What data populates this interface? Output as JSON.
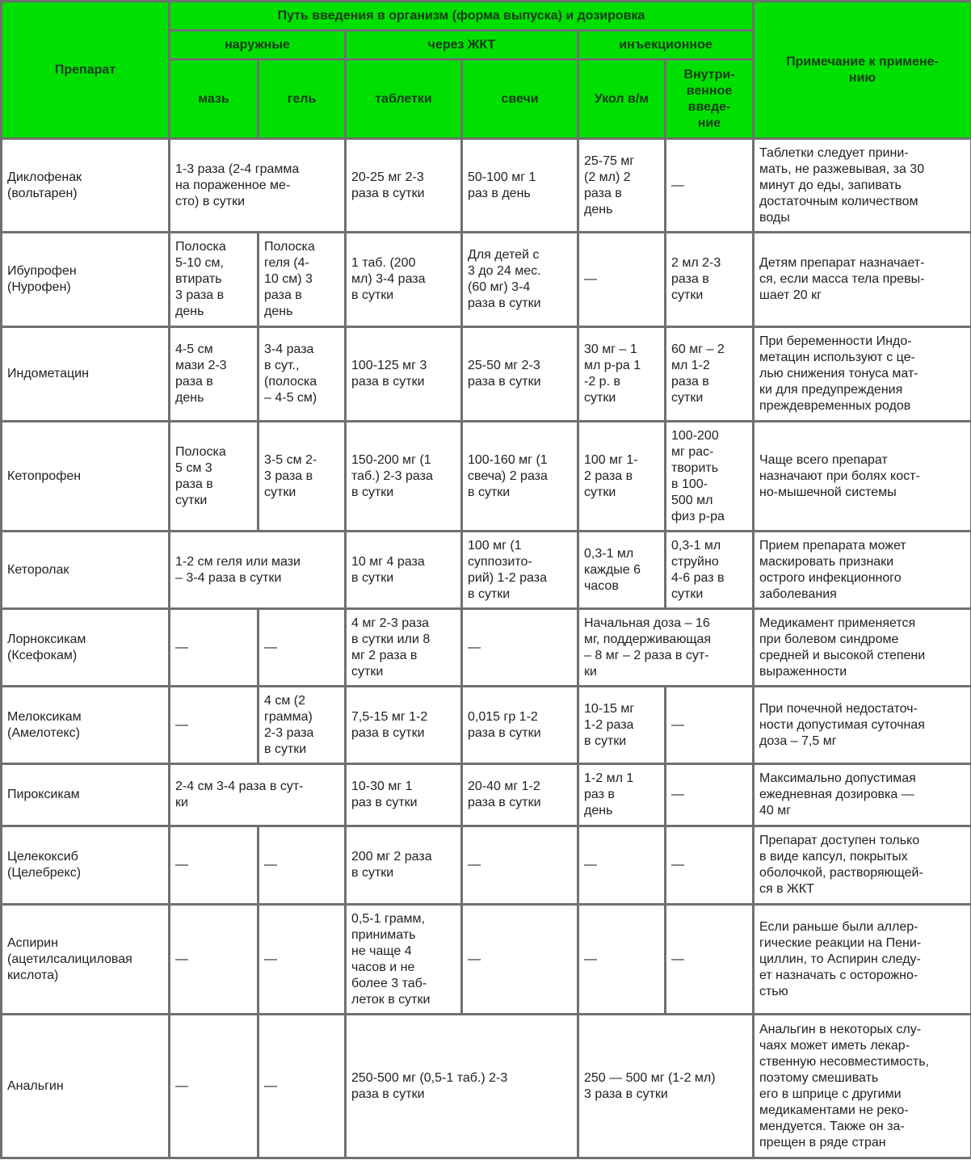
{
  "header": {
    "drug": "Препарат",
    "route": "Путь введения в организм (форма выпуска) и дозировка",
    "note": "Примечание к примене-\nнию",
    "groups": [
      "наружные",
      "через ЖКТ",
      "инъекционное"
    ],
    "forms": [
      "мазь",
      "гель",
      "таблетки",
      "свечи",
      "Укол в/м",
      "Внутри-\nвенное\nвведе-\nние"
    ]
  },
  "colors": {
    "header_bg": "#00e000",
    "border": "#707070"
  },
  "rows": [
    {
      "name": "Диклофенак\n(вольтарен)",
      "cells": [
        {
          "text": "1-3 раза (2-4 грамма\nна пораженное ме-\nсто) в сутки",
          "span": 2
        },
        {
          "text": "20-25 мг 2-3\nраза в сутки"
        },
        {
          "text": "50-100 мг 1\nраз в день"
        },
        {
          "text": "25-75 мг\n(2 мл) 2\nраза в\nдень"
        },
        {
          "text": "—"
        }
      ],
      "note": "Таблетки следует прини-\nмать, не разжевывая, за 30\nминут до еды, запивать\nдостаточным количеством\nводы"
    },
    {
      "name": "Ибупрофен\n(Нурофен)",
      "cells": [
        {
          "text": "Полоска\n5-10 см,\nвтирать\n3 раза в\nдень"
        },
        {
          "text": "Полоска\nгеля (4-\n10 см) 3\nраза в\nдень"
        },
        {
          "text": "1 таб. (200\nмл) 3-4 раза\nв сутки"
        },
        {
          "text": "Для детей с\n3 до 24 мес.\n(60 мг) 3-4\nраза в сутки"
        },
        {
          "text": "—"
        },
        {
          "text": "2 мл 2-3\nраза в\nсутки"
        }
      ],
      "note": "Детям препарат назначает-\nся, если масса тела превы-\nшает 20 кг"
    },
    {
      "name": "Индометацин",
      "cells": [
        {
          "text": "4-5 см\nмази 2-3\nраза в\nдень"
        },
        {
          "text": "3-4 раза\nв сут.,\n(полоска\n– 4-5 см)"
        },
        {
          "text": "100-125 мг 3\nраза в сутки"
        },
        {
          "text": "25-50 мг 2-3\nраза в сутки"
        },
        {
          "text": "30 мг – 1\nмл р-ра 1\n-2 р. в\nсутки"
        },
        {
          "text": "60 мг – 2\nмл 1-2\nраза в\nсутки"
        }
      ],
      "note": "При беременности Индо-\nметацин используют с це-\nлью снижения тонуса мат-\nки для предупреждения\nпреждевременных родов"
    },
    {
      "name": "Кетопрофен",
      "cells": [
        {
          "text": "Полоска\n5 см 3\nраза в\nсутки"
        },
        {
          "text": "3-5 см 2-\n3 раза в\nсутки"
        },
        {
          "text": "150-200 мг (1\nтаб.) 2-3 раза\nв сутки"
        },
        {
          "text": "100-160 мг (1\nсвеча) 2 раза\nв сутки"
        },
        {
          "text": "100 мг 1-\n2 раза в\nсутки"
        },
        {
          "text": "100-200\nмг рас-\nтворить\nв 100-\n500 мл\nфиз р-ра"
        }
      ],
      "note": "Чаще всего препарат\nназначают при болях кост-\nно-мышечной системы"
    },
    {
      "name": "Кеторолак",
      "cells": [
        {
          "text": "1-2 см геля или мази\n– 3-4 раза в сутки",
          "span": 2
        },
        {
          "text": "10 мг 4 раза\nв сутки"
        },
        {
          "text": "100 мг (1\nсуппозито-\nрий) 1-2 раза\nв сутки"
        },
        {
          "text": "0,3-1 мл\nкаждые 6\nчасов"
        },
        {
          "text": "0,3-1 мл\nструйно\n4-6 раз в\nсутки"
        }
      ],
      "note": "Прием препарата может\nмаскировать признаки\nострого инфекционного\nзаболевания"
    },
    {
      "name": "Лорноксикам\n(Ксефокам)",
      "cells": [
        {
          "text": "—"
        },
        {
          "text": "—"
        },
        {
          "text": "4 мг 2-3 раза\nв сутки или 8\nмг 2 раза в\nсутки"
        },
        {
          "text": "—"
        },
        {
          "text": "Начальная доза – 16\nмг, поддерживающая\n– 8 мг – 2 раза в сут-\nки",
          "span": 2
        }
      ],
      "note": "Медикамент применяется\nпри болевом синдроме\nсредней и высокой степени\nвыраженности"
    },
    {
      "name": "Мелоксикам\n(Амелотекс)",
      "cells": [
        {
          "text": "—"
        },
        {
          "text": "4 см (2\nграмма)\n2-3 раза\nв сутки"
        },
        {
          "text": "7,5-15 мг 1-2\nраза в сутки"
        },
        {
          "text": "0,015 гр 1-2\nраза в сутки"
        },
        {
          "text": "10-15 мг\n1-2 раза\nв сутки"
        },
        {
          "text": "—"
        }
      ],
      "note": "При почечной недостаточ-\nности допустимая суточная\nдоза – 7,5 мг"
    },
    {
      "name": "Пироксикам",
      "cells": [
        {
          "text": "2-4 см 3-4 раза в сут-\nки",
          "span": 2
        },
        {
          "text": "10-30 мг 1\nраз в сутки"
        },
        {
          "text": "20-40 мг 1-2\nраза в сутки"
        },
        {
          "text": "1-2 мл 1\nраз в\nдень"
        },
        {
          "text": "—"
        }
      ],
      "note": "Максимально допустимая\nежедневная дозировка —\n40 мг"
    },
    {
      "name": "Целекоксиб\n(Целебрекс)",
      "cells": [
        {
          "text": "—"
        },
        {
          "text": "—"
        },
        {
          "text": "200 мг 2 раза\nв сутки"
        },
        {
          "text": "—"
        },
        {
          "text": "—"
        },
        {
          "text": "—"
        }
      ],
      "note": "Препарат доступен только\nв виде капсул, покрытых\nоболочкой, растворяющей-\nся в ЖКТ"
    },
    {
      "name": "Аспирин\n(ацетилсалициловая\nкислота)",
      "cells": [
        {
          "text": "—"
        },
        {
          "text": "—"
        },
        {
          "text": "0,5-1 грамм,\nпринимать\nне чаще 4\nчасов и не\nболее 3 таб-\nлеток в сутки"
        },
        {
          "text": "—"
        },
        {
          "text": "—"
        },
        {
          "text": "—"
        }
      ],
      "note": "Если раньше были аллер-\nгические реакции на Пени-\nциллин, то Аспирин следу-\nет назначать с осторожно-\nстью"
    },
    {
      "name": "Анальгин",
      "cells": [
        {
          "text": "—"
        },
        {
          "text": "—"
        },
        {
          "text": "250-500 мг (0,5-1 таб.) 2-3\nраза в сутки",
          "span": 2
        },
        {
          "text": "250 — 500 мг (1-2 мл)\n3 раза в сутки",
          "span": 2
        }
      ],
      "note": "Анальгин в некоторых слу-\nчаях может иметь лекар-\nственную несовместимость,\nпоэтому смешивать\nего в шприце с другими\nмедикаментами не реко-\nмендуется. Также он за-\nпрещен в ряде стран"
    }
  ]
}
